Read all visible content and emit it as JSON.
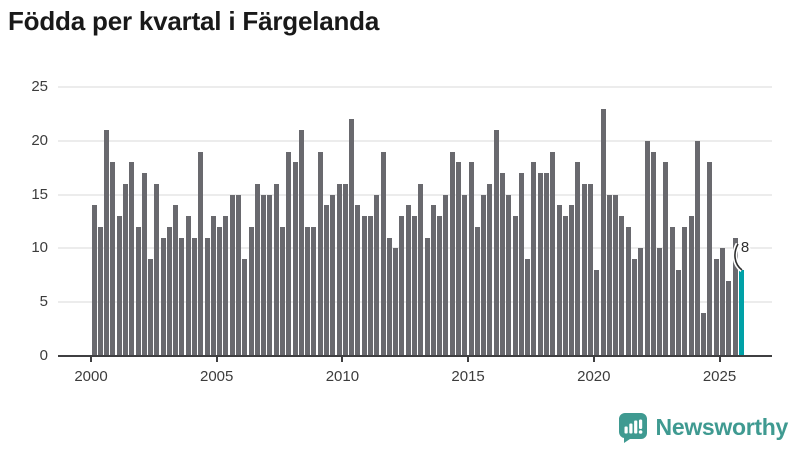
{
  "header": {
    "title": "Födda per kvartal i Färgelanda"
  },
  "chart_data": {
    "type": "bar",
    "title": "Födda per kvartal i Färgelanda",
    "x_start": "2000 Q1",
    "x_end": "2025 Q4",
    "x_tick_labels": [
      "2000",
      "2005",
      "2010",
      "2015",
      "2020",
      "2025"
    ],
    "y_ticks": [
      0,
      5,
      10,
      15,
      20,
      25
    ],
    "ylim": [
      0,
      25
    ],
    "grid": "horizontal",
    "quarters_per_year": 4,
    "series": [
      {
        "name": "Födda",
        "values": [
          14,
          12,
          21,
          18,
          13,
          16,
          18,
          12,
          17,
          9,
          16,
          11,
          12,
          14,
          11,
          13,
          11,
          19,
          11,
          13,
          12,
          13,
          15,
          15,
          9,
          12,
          16,
          15,
          15,
          16,
          12,
          19,
          18,
          21,
          12,
          12,
          19,
          14,
          15,
          16,
          16,
          22,
          14,
          13,
          13,
          15,
          19,
          11,
          10,
          13,
          14,
          13,
          16,
          11,
          14,
          13,
          15,
          19,
          18,
          15,
          18,
          12,
          15,
          16,
          21,
          17,
          15,
          13,
          17,
          9,
          18,
          17,
          17,
          19,
          14,
          13,
          14,
          18,
          16,
          16,
          8,
          23,
          15,
          15,
          13,
          12,
          9,
          10,
          20,
          19,
          10,
          18,
          12,
          8,
          12,
          13,
          20,
          4,
          18,
          9,
          10,
          7,
          11,
          8
        ]
      }
    ],
    "highlight": {
      "index": 103,
      "quarter": "2025 Q4",
      "value": 8,
      "label": "8"
    },
    "legend": "none"
  },
  "colors": {
    "bar": "#69696e",
    "highlight_bar": "#00a1a7",
    "grid": "#ececec",
    "axis": "#3f3f41",
    "tick_label": "#3c3c3c",
    "title": "#191919",
    "annotation": "#2f2f2f",
    "logo": "#3f9a91"
  },
  "branding": {
    "logo_text": "Newsworthy",
    "logo_icon": "bar-chart-speech-bubble-icon"
  }
}
